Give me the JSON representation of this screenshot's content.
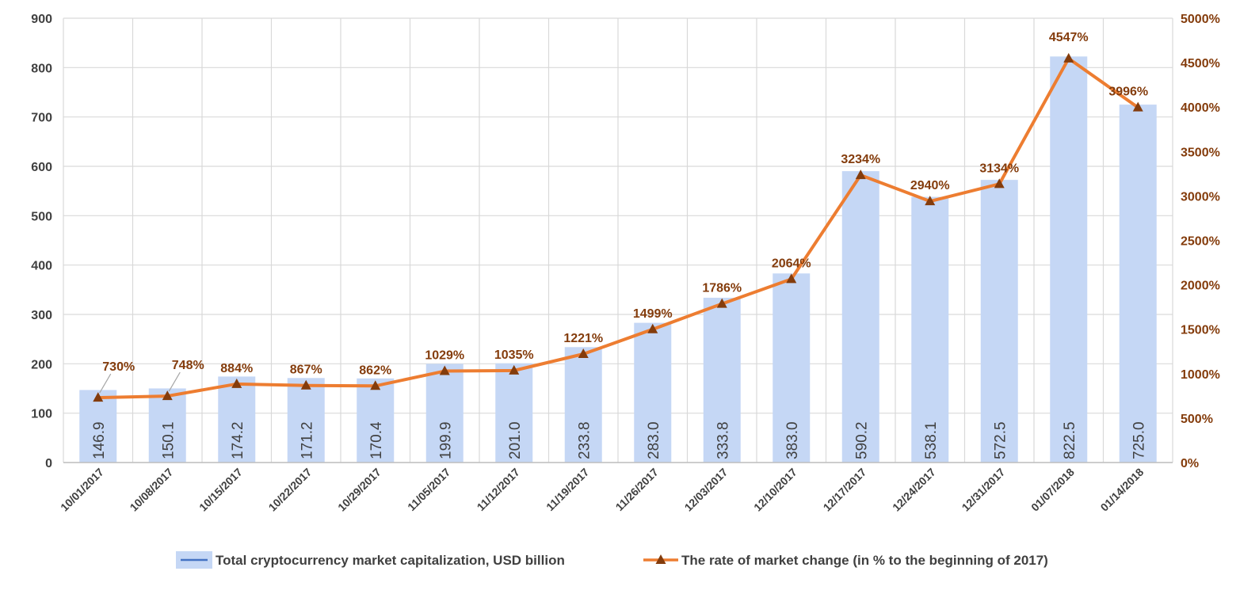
{
  "chart_data": {
    "type": "bar",
    "categories": [
      "10/01/2017",
      "10/08/2017",
      "10/15/2017",
      "10/22/2017",
      "10/29/2017",
      "11/05/2017",
      "11/12/2017",
      "11/19/2017",
      "11/26/2017",
      "12/03/2017",
      "12/10/2017",
      "12/17/2017",
      "12/24/2017",
      "12/31/2017",
      "01/07/2018",
      "01/14/2018"
    ],
    "series": [
      {
        "name": "Total cryptocurrency market capitalization, USD billion",
        "type": "bar",
        "axis": "left",
        "color": "#c5d7f5",
        "values": [
          146.9,
          150.1,
          174.2,
          171.2,
          170.4,
          199.9,
          201.0,
          233.8,
          283.0,
          333.8,
          383.0,
          590.2,
          538.1,
          572.5,
          822.5,
          725.0
        ],
        "labels": [
          "146.9",
          "150.1",
          "174.2",
          "171.2",
          "170.4",
          "199.9",
          "201.0",
          "233.8",
          "283.0",
          "333.8",
          "383.0",
          "590.2",
          "538.1",
          "572.5",
          "822.5",
          "725.0"
        ]
      },
      {
        "name": "The rate of market change (in % to the beginning of 2017)",
        "type": "line",
        "axis": "right",
        "color": "#ed7d31",
        "marker_color": "#843c0c",
        "marker": "triangle",
        "values": [
          730,
          748,
          884,
          867,
          862,
          1029,
          1035,
          1221,
          1499,
          1786,
          2064,
          3234,
          2940,
          3134,
          4547,
          3996
        ],
        "labels": [
          "730%",
          "748%",
          "884%",
          "867%",
          "862%",
          "1029%",
          "1035%",
          "1221%",
          "1499%",
          "1786%",
          "2064%",
          "3234%",
          "2940%",
          "3134%",
          "4547%",
          "3996%"
        ]
      }
    ],
    "y_left": {
      "lim": [
        0,
        900
      ],
      "ticks": [
        0,
        100,
        200,
        300,
        400,
        500,
        600,
        700,
        800,
        900
      ],
      "tick_labels": [
        "0",
        "100",
        "200",
        "300",
        "400",
        "500",
        "600",
        "700",
        "800",
        "900"
      ]
    },
    "y_right": {
      "lim": [
        0,
        5000
      ],
      "ticks": [
        0,
        500,
        1000,
        1500,
        2000,
        2500,
        3000,
        3500,
        4000,
        4500,
        5000
      ],
      "tick_labels": [
        "0%",
        "500%",
        "1000%",
        "1500%",
        "2000%",
        "2500%",
        "3000%",
        "3500%",
        "4000%",
        "4500%",
        "5000%"
      ]
    },
    "grid": true,
    "legend_position": "bottom"
  }
}
